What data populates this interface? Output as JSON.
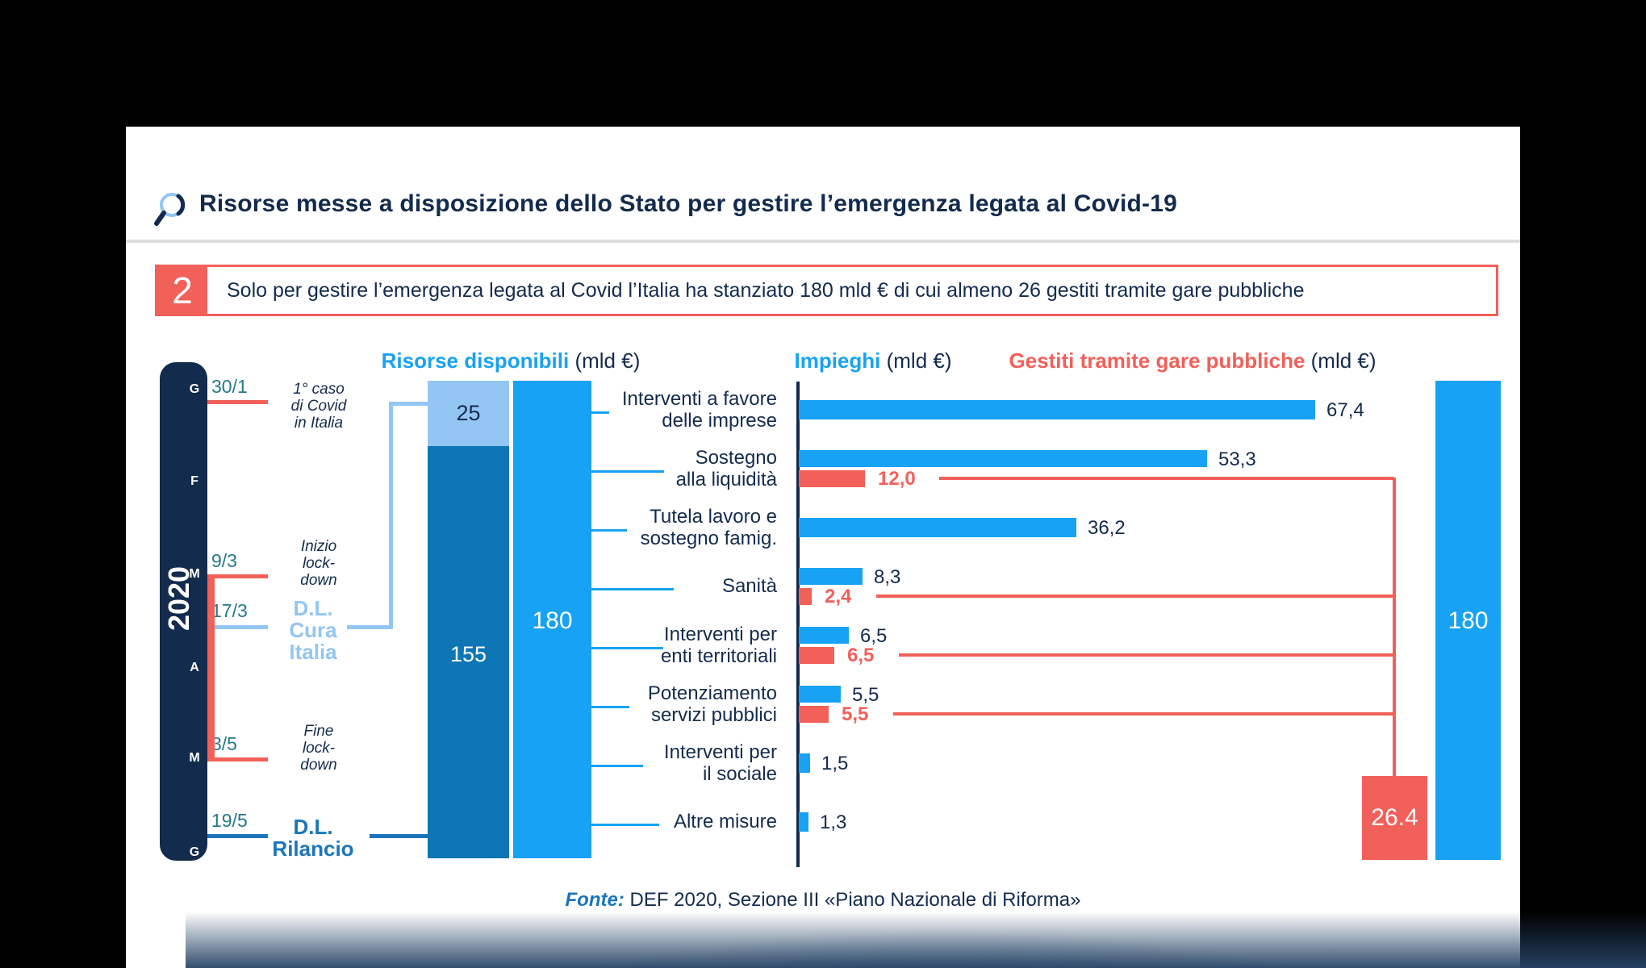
{
  "title": {
    "text": "Risorse messe a disposizione dello Stato per gestire l’emergenza legata al Covid-19",
    "icon": "magnifier-icon"
  },
  "callout": {
    "number": "2",
    "text": "Solo per gestire l’emergenza legata al Covid l’Italia ha stanziato 180 mld € di cui almeno 26 gestiti tramite gare pubbliche"
  },
  "column_headers": {
    "left": {
      "strong": "Risorse disponibili",
      "unit": " (mld €)"
    },
    "mid": {
      "strong": "Impieghi",
      "unit": " (mld €)"
    },
    "right": {
      "strong": "Gestiti tramite gare pubbliche",
      "unit": " (mld €)"
    }
  },
  "timeline": {
    "year": "2020",
    "months": [
      "G",
      "F",
      "M",
      "A",
      "M",
      "G"
    ],
    "events": [
      {
        "date": "30/1",
        "label_lines": [
          "1° caso",
          "di Covid",
          "in Italia"
        ],
        "kind": "event-red"
      },
      {
        "date": "9/3",
        "label_lines": [
          "Inizio",
          "lock-",
          "down"
        ],
        "kind": "event-red"
      },
      {
        "date": "17/3",
        "label_lines": [
          "D.L.",
          "Cura",
          "Italia"
        ],
        "kind": "decree-lightblue"
      },
      {
        "date": "3/5",
        "label_lines": [
          "Fine",
          "lock-",
          "down"
        ],
        "kind": "event-red"
      },
      {
        "date": "19/5",
        "label_lines": [
          "D.L.",
          "Rilancio"
        ],
        "kind": "decree-blue"
      }
    ]
  },
  "resources": {
    "stacked_top": "25",
    "stacked_bottom": "155",
    "total_left": "180",
    "total_right": "180",
    "gare_total": "26.4"
  },
  "chart_data": {
    "type": "bar",
    "orientation": "horizontal",
    "title": "Impieghi e gestiti tramite gare pubbliche (mld €)",
    "unit": "mld €",
    "categories": [
      [
        "Interventi a favore",
        "delle imprese"
      ],
      [
        "Sostegno",
        "alla liquidità"
      ],
      [
        "Tutela lavoro e",
        "sostegno famig."
      ],
      [
        "Sanità"
      ],
      [
        "Interventi per",
        "enti territoriali"
      ],
      [
        "Potenziamento",
        "servizi pubblici"
      ],
      [
        "Interventi per",
        "il sociale"
      ],
      [
        "Altre misure"
      ]
    ],
    "series": [
      {
        "name": "Impieghi",
        "color": "#18A2F3",
        "values": [
          67.4,
          53.3,
          36.2,
          8.3,
          6.5,
          5.5,
          1.5,
          1.3
        ],
        "display": [
          "67,4",
          "53,3",
          "36,2",
          "8,3",
          "6,5",
          "5,5",
          "1,5",
          "1,3"
        ]
      },
      {
        "name": "Gestiti tramite gare pubbliche",
        "color": "#F2605A",
        "values": [
          null,
          12.0,
          null,
          2.4,
          6.5,
          5.5,
          null,
          null
        ],
        "display": [
          null,
          "12,0",
          null,
          "2,4",
          "6,5",
          "5,5",
          null,
          null
        ]
      }
    ],
    "totals": {
      "risorse_disponibili": 180,
      "cura_italia": 25,
      "rilancio": 155,
      "gare_pubbliche": 26.4
    }
  },
  "fonte": {
    "prefix": "Fonte:",
    "text": " DEF 2020, Sezione III «Piano Nazionale di Riforma»"
  },
  "colors": {
    "navy": "#132B4D",
    "bright_blue": "#18A2F3",
    "mid_blue": "#1B75BB",
    "light_blue": "#93C6F3",
    "dark_blue": "#0E76B4",
    "coral_red": "#F2605A",
    "teal": "#26798C"
  }
}
